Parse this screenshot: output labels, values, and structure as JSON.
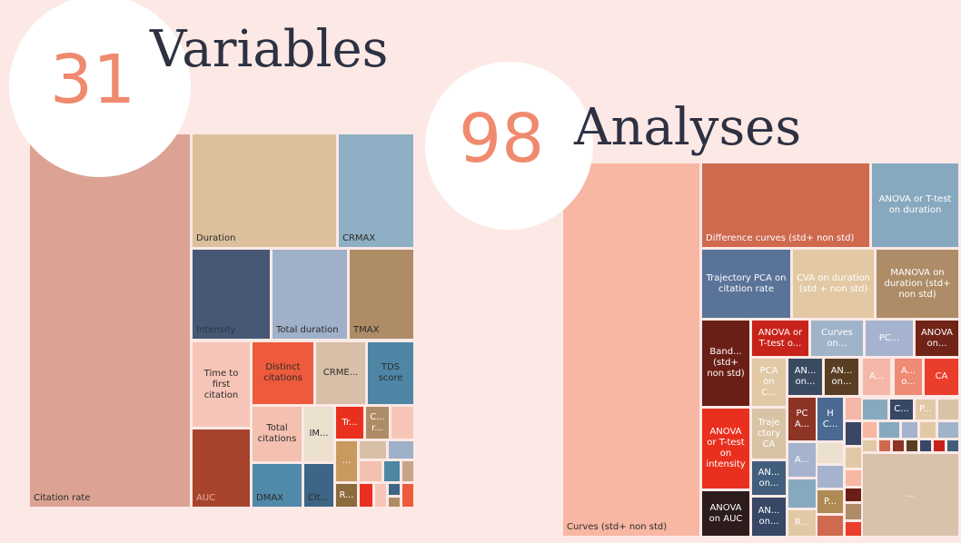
{
  "left": {
    "count": 31,
    "title": "Variables",
    "tiles": [
      "Citation rate",
      "Duration",
      "CRMAX",
      "Intensity",
      "Total duration",
      "TMAX",
      "Time to first citation",
      "AUC",
      "Distinct citations",
      "CRME...",
      "TDS score",
      "Total citations",
      "IM...",
      "DMAX",
      "Cit...",
      "Tr...",
      "C... r...",
      "...",
      "R..."
    ]
  },
  "right": {
    "count": 98,
    "title": "Analyses",
    "tiles": [
      "Curves (std+ non std)",
      "Difference curves (std+ non std)",
      "ANOVA or T-test on duration",
      "Trajectory PCA on citation rate",
      "CVA on duration (std + non std)",
      "MANOVA on duration (std+ non std)",
      "Band... (std+ non std)",
      "ANOVA or T-test on intensity",
      "ANOVA on AUC",
      "ANOVA or T-test o...",
      "Curves on...",
      "PC...",
      "ANOVA on...",
      "PCA on C...",
      "AN... on...",
      "AN... on...",
      "A...",
      "A... o...",
      "CA",
      "Traje ctory CA",
      "AN... on...",
      "AN... on...",
      "PC A...",
      "H C...",
      "...",
      "C...",
      "P...",
      "A...",
      "R...",
      "P..."
    ]
  }
}
